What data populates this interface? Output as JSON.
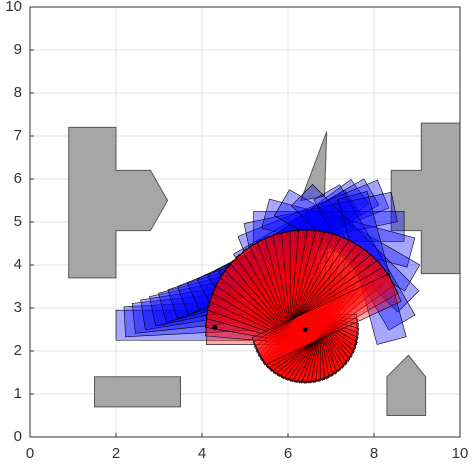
{
  "chart_data": {
    "type": "polygon",
    "xlim": [
      0,
      10
    ],
    "ylim": [
      0,
      10
    ],
    "xticks": [
      0,
      2,
      4,
      6,
      8,
      10
    ],
    "yticks": [
      0,
      1,
      2,
      3,
      4,
      5,
      6,
      7,
      8,
      9,
      10
    ],
    "grid": true,
    "obstacle_color": "#a6a6a6",
    "obstacles": [
      {
        "x": [
          0.9,
          0.9,
          2.0,
          2.0,
          2.8,
          3.2,
          2.8,
          2.0,
          2.0
        ],
        "y": [
          3.7,
          7.2,
          7.2,
          6.2,
          6.2,
          5.5,
          4.8,
          4.8,
          3.7
        ]
      },
      {
        "x": [
          6.3,
          6.9,
          6.85
        ],
        "y": [
          5.5,
          7.1,
          5.6
        ]
      },
      {
        "x": [
          9.1,
          10,
          10,
          9.1,
          9.1,
          8.4,
          8.4,
          9.1
        ],
        "y": [
          7.3,
          7.3,
          3.8,
          3.8,
          4.8,
          4.8,
          6.2,
          6.2
        ]
      },
      {
        "x": [
          1.5,
          3.5,
          3.5,
          1.5
        ],
        "y": [
          0.7,
          0.7,
          1.4,
          1.4
        ]
      },
      {
        "x": [
          8.3,
          9.2,
          9.2,
          8.8,
          8.3
        ],
        "y": [
          0.5,
          0.5,
          1.4,
          1.9,
          1.4
        ]
      }
    ],
    "vehicle": {
      "front": 1.2,
      "rear": 2.3,
      "width": 0.7
    },
    "series": [
      {
        "color": "#0000ff",
        "poses": [
          [
            4.3,
            2.6,
            0
          ],
          [
            4.5,
            2.8,
            3
          ],
          [
            4.7,
            3.0,
            6
          ],
          [
            4.9,
            3.2,
            9
          ],
          [
            5.1,
            3.4,
            12
          ],
          [
            5.3,
            3.6,
            15
          ],
          [
            5.5,
            3.8,
            18
          ],
          [
            5.7,
            4.0,
            21
          ],
          [
            5.9,
            4.2,
            24
          ],
          [
            6.1,
            4.4,
            27
          ],
          [
            6.3,
            4.6,
            30
          ],
          [
            6.5,
            4.8,
            33
          ],
          [
            6.7,
            5.0,
            36
          ],
          [
            6.9,
            5.1,
            30
          ],
          [
            7.1,
            5.2,
            22
          ],
          [
            7.3,
            5.1,
            12
          ],
          [
            7.5,
            4.9,
            0
          ],
          [
            7.7,
            4.6,
            -15
          ],
          [
            7.85,
            4.3,
            -30
          ],
          [
            7.95,
            4.0,
            -45
          ],
          [
            8.05,
            3.7,
            -60
          ],
          [
            8.1,
            3.4,
            -75
          ]
        ]
      },
      {
        "color": "#ff0000",
        "poses": [
          [
            6.4,
            2.5,
            0
          ],
          [
            6.4,
            2.5,
            -5
          ],
          [
            6.4,
            2.5,
            -10
          ],
          [
            6.4,
            2.5,
            -15
          ],
          [
            6.4,
            2.5,
            -20
          ],
          [
            6.4,
            2.5,
            -25
          ],
          [
            6.4,
            2.5,
            -30
          ],
          [
            6.4,
            2.5,
            -35
          ],
          [
            6.4,
            2.5,
            -40
          ],
          [
            6.4,
            2.5,
            -45
          ],
          [
            6.4,
            2.5,
            -50
          ],
          [
            6.4,
            2.5,
            -55
          ],
          [
            6.4,
            2.5,
            -60
          ],
          [
            6.4,
            2.5,
            -65
          ],
          [
            6.4,
            2.5,
            -70
          ],
          [
            6.4,
            2.5,
            -75
          ],
          [
            6.4,
            2.5,
            -80
          ],
          [
            6.4,
            2.5,
            -85
          ],
          [
            6.4,
            2.5,
            -90
          ],
          [
            6.4,
            2.5,
            -95
          ],
          [
            6.4,
            2.5,
            -100
          ],
          [
            6.4,
            2.5,
            -105
          ],
          [
            6.4,
            2.5,
            -110
          ],
          [
            6.4,
            2.5,
            -115
          ],
          [
            6.4,
            2.5,
            -120
          ],
          [
            6.4,
            2.5,
            -125
          ],
          [
            6.4,
            2.5,
            -130
          ],
          [
            6.4,
            2.5,
            -135
          ],
          [
            6.4,
            2.5,
            -140
          ],
          [
            6.4,
            2.5,
            -145
          ],
          [
            6.4,
            2.5,
            -150
          ],
          [
            6.4,
            2.5,
            -155
          ]
        ]
      }
    ],
    "points": {
      "x": [
        4.3,
        6.4
      ],
      "y": [
        2.55,
        2.5
      ]
    }
  }
}
